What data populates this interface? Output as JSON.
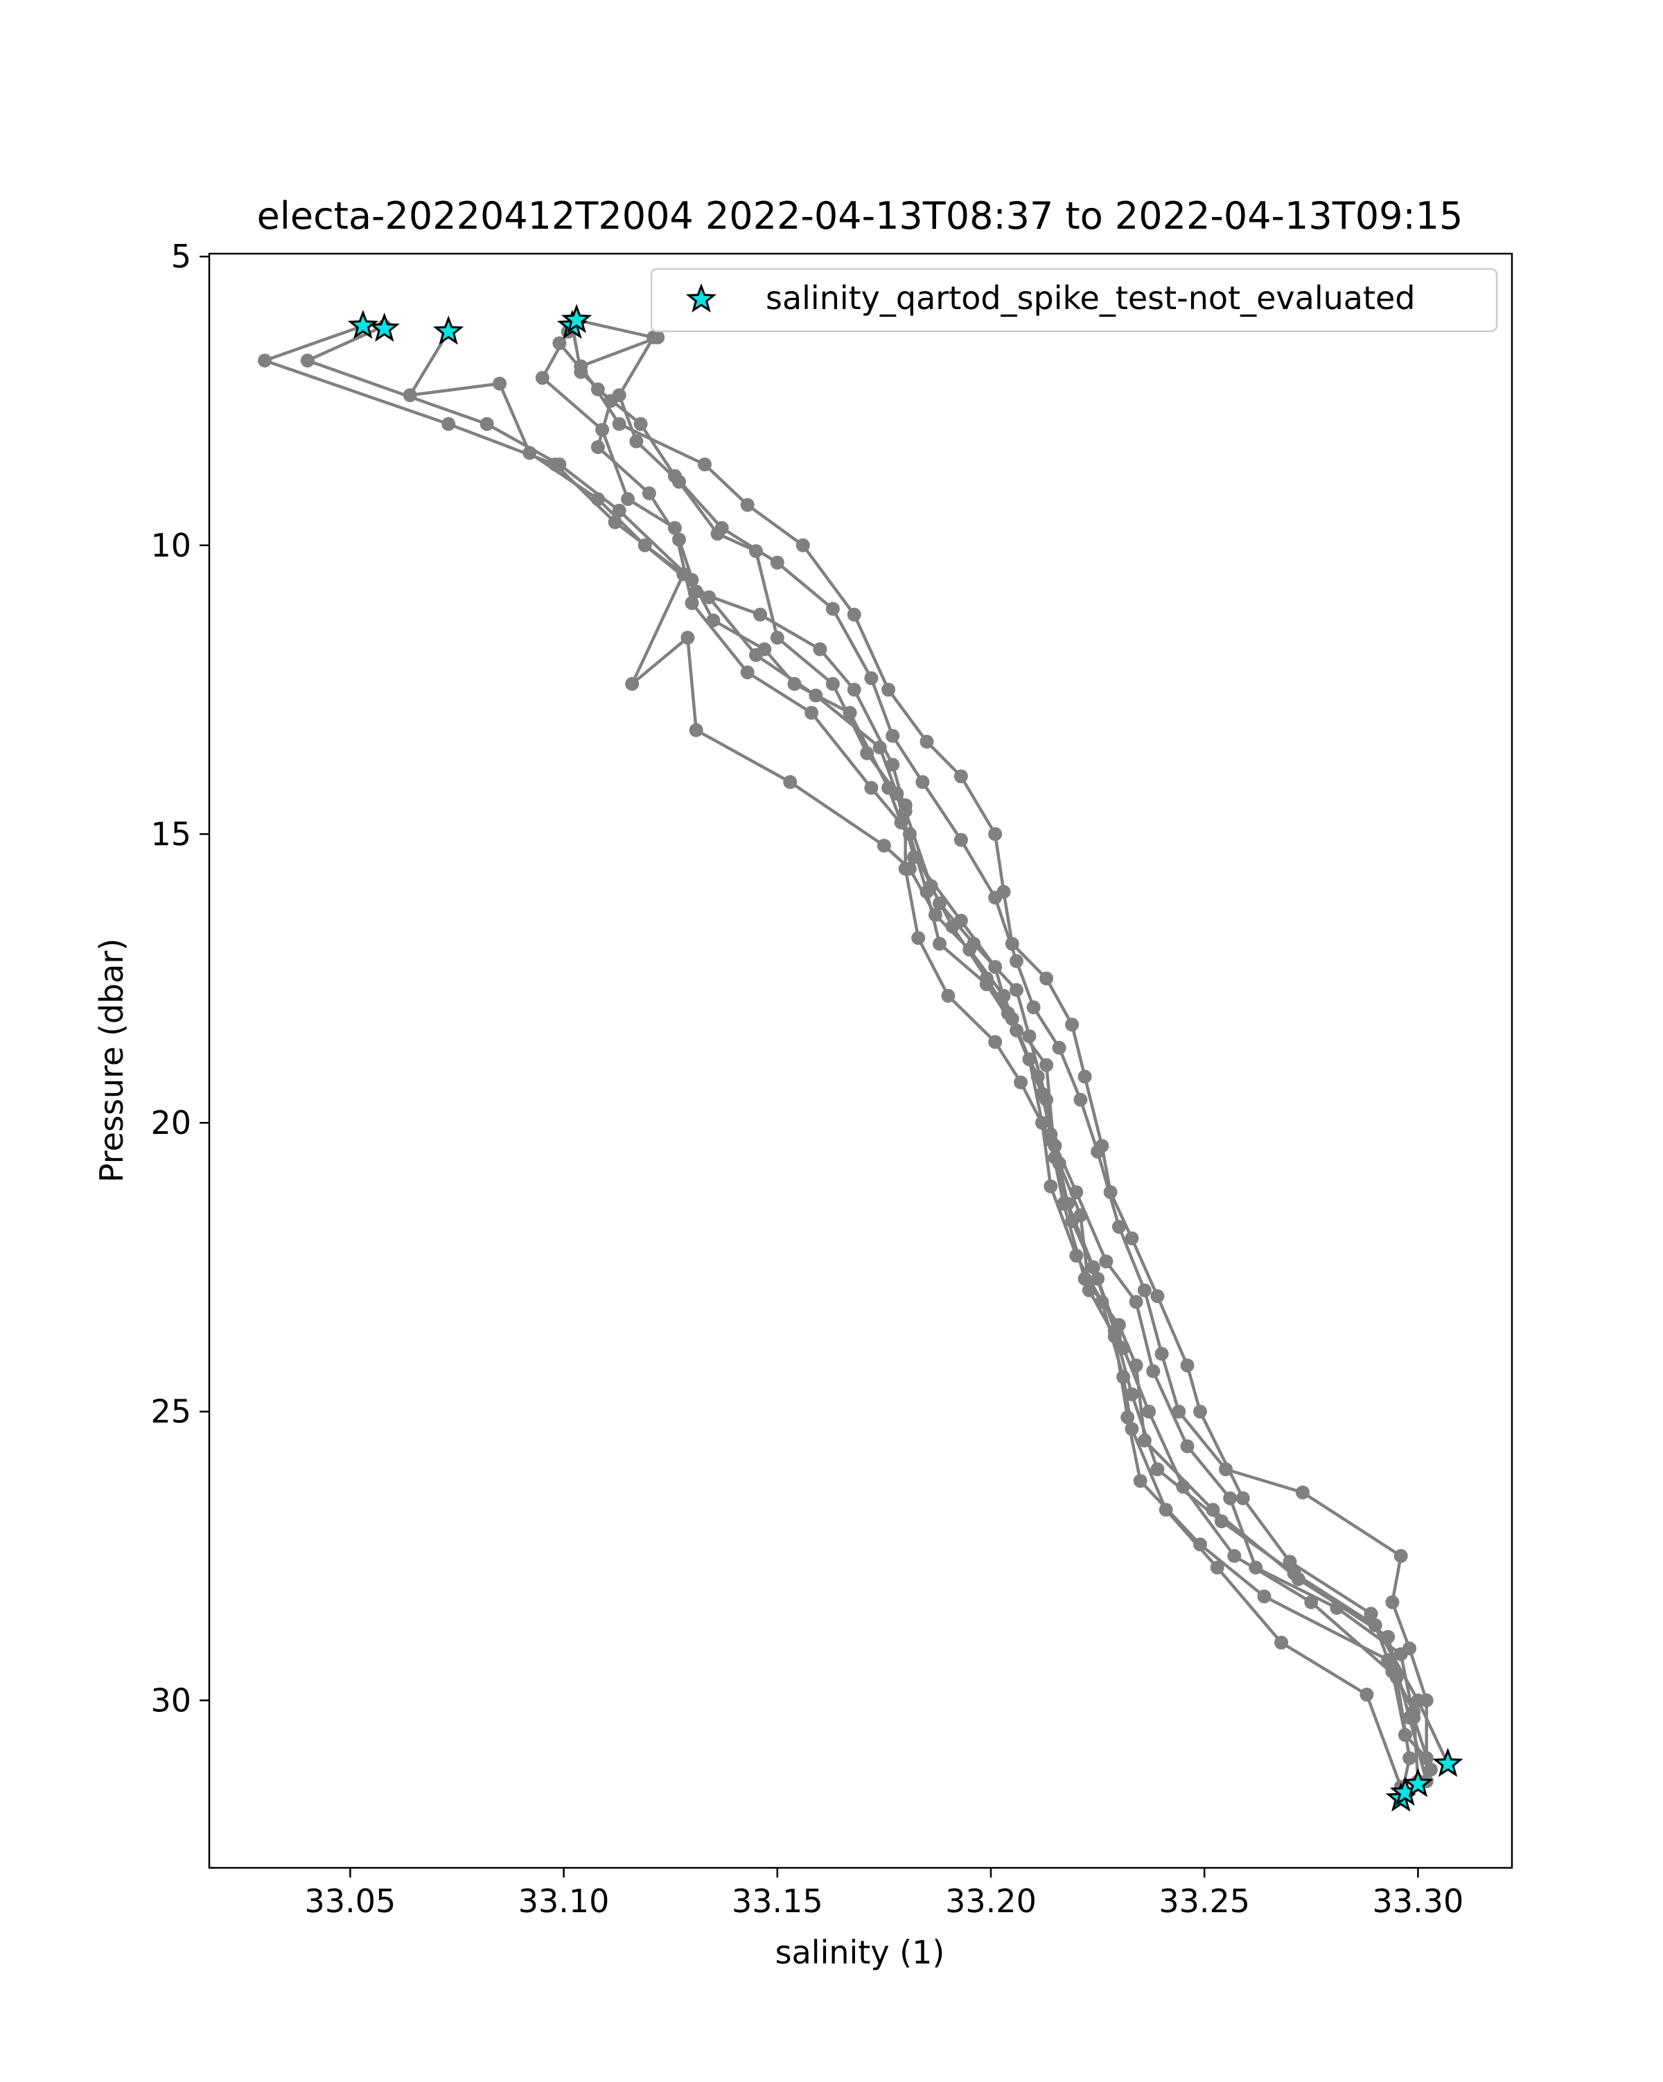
{
  "chart_data": {
    "type": "line",
    "title": "electa-20220412T2004 2022-04-13T08:37 to 2022-04-13T09:15",
    "xlabel": "salinity (1)",
    "ylabel": "Pressure (dbar)",
    "xlim": [
      33.017,
      33.322
    ],
    "ylim": [
      32.9,
      4.95
    ],
    "y_inverted": true,
    "x_ticks": [
      33.05,
      33.1,
      33.15,
      33.2,
      33.25,
      33.3
    ],
    "x_tick_labels": [
      "33.05",
      "33.10",
      "33.15",
      "33.20",
      "33.25",
      "33.30"
    ],
    "y_ticks": [
      5,
      10,
      15,
      20,
      25,
      30
    ],
    "y_tick_labels": [
      "5",
      "10",
      "15",
      "20",
      "25",
      "30"
    ],
    "grid": false,
    "legend": {
      "position": "top-right",
      "entries": [
        {
          "label": "salinity_qartod_spike_test-not_evaluated",
          "marker": "star",
          "color": "#00e5e5",
          "edgecolor": "#000000"
        }
      ]
    },
    "line_color": "#808080",
    "series": [
      {
        "points": [
          [
            33.053,
            6.2
          ],
          [
            33.03,
            6.8
          ],
          [
            33.073,
            7.9
          ],
          [
            33.098,
            8.6
          ],
          [
            33.112,
            9.6
          ],
          [
            33.128,
            10.5
          ],
          [
            33.116,
            12.4
          ],
          [
            33.129,
            11.6
          ],
          [
            33.131,
            13.2
          ],
          [
            33.153,
            14.1
          ],
          [
            33.175,
            15.2
          ],
          [
            33.181,
            15.6
          ],
          [
            33.187,
            16.4
          ],
          [
            33.195,
            17.0
          ],
          [
            33.203,
            17.8
          ],
          [
            33.209,
            18.9
          ],
          [
            33.212,
            20.0
          ],
          [
            33.214,
            21.1
          ],
          [
            33.22,
            22.3
          ],
          [
            33.226,
            23.1
          ],
          [
            33.231,
            24.4
          ],
          [
            33.233,
            25.3
          ],
          [
            33.241,
            26.7
          ],
          [
            33.253,
            27.7
          ],
          [
            33.268,
            29.0
          ],
          [
            33.288,
            29.9
          ],
          [
            33.296,
            31.5
          ],
          [
            33.297,
            31.6
          ]
        ]
      },
      {
        "points": [
          [
            33.058,
            6.2
          ],
          [
            33.04,
            6.8
          ],
          [
            33.082,
            7.9
          ],
          [
            33.099,
            8.6
          ],
          [
            33.113,
            9.4
          ],
          [
            33.13,
            10.6
          ],
          [
            33.135,
            11.3
          ],
          [
            33.147,
            11.8
          ],
          [
            33.154,
            12.4
          ],
          [
            33.167,
            12.9
          ],
          [
            33.176,
            14.2
          ],
          [
            33.179,
            14.8
          ],
          [
            33.188,
            16.2
          ],
          [
            33.196,
            16.9
          ],
          [
            33.206,
            17.7
          ],
          [
            33.209,
            18.5
          ],
          [
            33.213,
            19.6
          ],
          [
            33.216,
            20.7
          ],
          [
            33.221,
            21.6
          ],
          [
            33.223,
            22.9
          ],
          [
            33.229,
            23.7
          ],
          [
            33.232,
            25.1
          ],
          [
            33.235,
            26.2
          ],
          [
            33.249,
            27.3
          ],
          [
            33.264,
            28.2
          ],
          [
            33.293,
            29.3
          ],
          [
            33.299,
            30.2
          ],
          [
            33.3,
            31.4
          ]
        ]
      },
      {
        "points": [
          [
            33.073,
            6.3
          ],
          [
            33.064,
            7.4
          ],
          [
            33.085,
            7.2
          ],
          [
            33.092,
            8.4
          ],
          [
            33.108,
            9.2
          ],
          [
            33.119,
            10.0
          ],
          [
            33.134,
            10.9
          ],
          [
            33.145,
            11.9
          ],
          [
            33.159,
            12.6
          ],
          [
            33.174,
            13.5
          ],
          [
            33.178,
            14.3
          ],
          [
            33.182,
            15.4
          ],
          [
            33.193,
            16.5
          ],
          [
            33.201,
            17.3
          ],
          [
            33.204,
            18.1
          ],
          [
            33.211,
            19.2
          ],
          [
            33.215,
            20.4
          ],
          [
            33.218,
            21.4
          ],
          [
            33.224,
            22.5
          ],
          [
            33.229,
            23.6
          ],
          [
            33.233,
            24.7
          ],
          [
            33.239,
            26.0
          ],
          [
            33.254,
            26.9
          ],
          [
            33.271,
            27.8
          ],
          [
            33.29,
            28.7
          ],
          [
            33.3,
            30.0
          ],
          [
            33.307,
            31.1
          ]
        ]
      },
      {
        "points": [
          [
            33.102,
            6.2
          ],
          [
            33.104,
            7.0
          ],
          [
            33.111,
            7.5
          ],
          [
            33.108,
            8.3
          ],
          [
            33.12,
            9.1
          ],
          [
            33.127,
            9.9
          ],
          [
            33.131,
            10.8
          ],
          [
            33.146,
            11.2
          ],
          [
            33.16,
            11.8
          ],
          [
            33.168,
            12.5
          ],
          [
            33.177,
            13.8
          ],
          [
            33.18,
            14.6
          ],
          [
            33.186,
            15.9
          ],
          [
            33.191,
            16.6
          ],
          [
            33.199,
            17.5
          ],
          [
            33.205,
            18.2
          ],
          [
            33.213,
            19.0
          ],
          [
            33.215,
            20.6
          ],
          [
            33.219,
            21.7
          ],
          [
            33.225,
            22.7
          ],
          [
            33.231,
            23.9
          ],
          [
            33.237,
            25.0
          ],
          [
            33.245,
            26.3
          ],
          [
            33.257,
            27.5
          ],
          [
            33.275,
            28.3
          ],
          [
            33.295,
            29.6
          ],
          [
            33.298,
            31.0
          ],
          [
            33.296,
            31.7
          ]
        ]
      },
      {
        "points": [
          [
            33.103,
            6.1
          ],
          [
            33.121,
            6.4
          ],
          [
            33.113,
            7.4
          ],
          [
            33.117,
            8.2
          ],
          [
            33.127,
            8.9
          ],
          [
            33.136,
            9.8
          ],
          [
            33.145,
            10.1
          ],
          [
            33.15,
            11.6
          ],
          [
            33.163,
            12.4
          ],
          [
            33.171,
            13.6
          ],
          [
            33.18,
            14.5
          ],
          [
            33.18,
            15.6
          ],
          [
            33.183,
            16.8
          ],
          [
            33.19,
            17.8
          ],
          [
            33.201,
            18.6
          ],
          [
            33.207,
            19.3
          ],
          [
            33.214,
            20.3
          ],
          [
            33.217,
            21.4
          ],
          [
            33.222,
            22.7
          ],
          [
            33.23,
            23.5
          ],
          [
            33.234,
            24.2
          ],
          [
            33.236,
            25.5
          ],
          [
            33.252,
            26.7
          ],
          [
            33.272,
            27.9
          ],
          [
            33.293,
            28.9
          ],
          [
            33.298,
            30.3
          ],
          [
            33.302,
            31.4
          ]
        ]
      },
      {
        "points": [
          [
            33.101,
            6.3
          ],
          [
            33.095,
            7.1
          ],
          [
            33.109,
            8.0
          ],
          [
            33.115,
            9.2
          ],
          [
            33.126,
            9.7
          ],
          [
            33.13,
            11.0
          ],
          [
            33.143,
            12.2
          ],
          [
            33.158,
            12.9
          ],
          [
            33.172,
            14.2
          ],
          [
            33.181,
            15.0
          ],
          [
            33.185,
            16.0
          ],
          [
            33.188,
            16.9
          ],
          [
            33.199,
            17.6
          ],
          [
            33.206,
            18.4
          ],
          [
            33.212,
            19.5
          ],
          [
            33.214,
            20.2
          ],
          [
            33.22,
            21.2
          ],
          [
            33.227,
            22.4
          ],
          [
            33.234,
            23.1
          ],
          [
            33.238,
            24.3
          ],
          [
            33.246,
            25.6
          ],
          [
            33.256,
            26.5
          ],
          [
            33.262,
            27.7
          ],
          [
            33.281,
            28.4
          ],
          [
            33.296,
            29.2
          ],
          [
            33.299,
            30.3
          ],
          [
            33.303,
            31.2
          ]
        ]
      },
      {
        "points": [
          [
            33.099,
            6.5
          ],
          [
            33.108,
            7.3
          ],
          [
            33.118,
            7.9
          ],
          [
            33.126,
            8.8
          ],
          [
            33.137,
            9.7
          ],
          [
            33.15,
            10.3
          ],
          [
            33.163,
            11.1
          ],
          [
            33.172,
            12.3
          ],
          [
            33.177,
            13.3
          ],
          [
            33.184,
            14.1
          ],
          [
            33.193,
            15.1
          ],
          [
            33.201,
            16.1
          ],
          [
            33.206,
            17.2
          ],
          [
            33.21,
            18.0
          ],
          [
            33.216,
            18.7
          ],
          [
            33.221,
            19.6
          ],
          [
            33.225,
            20.5
          ],
          [
            33.23,
            21.8
          ],
          [
            33.236,
            22.9
          ],
          [
            33.24,
            24.0
          ],
          [
            33.244,
            25.0
          ],
          [
            33.255,
            26.0
          ],
          [
            33.273,
            26.4
          ],
          [
            33.296,
            27.5
          ],
          [
            33.294,
            28.3
          ],
          [
            33.298,
            29.1
          ],
          [
            33.302,
            30.0
          ],
          [
            33.302,
            31.0
          ]
        ]
      },
      {
        "points": [
          [
            33.122,
            6.4
          ],
          [
            33.104,
            6.9
          ],
          [
            33.113,
            7.9
          ],
          [
            33.133,
            8.6
          ],
          [
            33.143,
            9.3
          ],
          [
            33.156,
            10.0
          ],
          [
            33.168,
            11.2
          ],
          [
            33.176,
            12.5
          ],
          [
            33.185,
            13.4
          ],
          [
            33.193,
            14.0
          ],
          [
            33.201,
            15.0
          ],
          [
            33.203,
            16.0
          ],
          [
            33.205,
            16.9
          ],
          [
            33.213,
            17.5
          ],
          [
            33.219,
            18.3
          ],
          [
            33.222,
            19.2
          ],
          [
            33.226,
            20.4
          ],
          [
            33.228,
            21.2
          ],
          [
            33.233,
            22.0
          ],
          [
            33.239,
            23.0
          ],
          [
            33.246,
            24.2
          ],
          [
            33.249,
            25.0
          ],
          [
            33.259,
            26.5
          ],
          [
            33.27,
            27.6
          ],
          [
            33.289,
            28.5
          ],
          [
            33.294,
            29.5
          ],
          [
            33.297,
            30.6
          ],
          [
            33.302,
            31.0
          ]
        ]
      }
    ],
    "flagged_points": [
      [
        33.053,
        6.2
      ],
      [
        33.058,
        6.25
      ],
      [
        33.073,
        6.3
      ],
      [
        33.102,
        6.2
      ],
      [
        33.103,
        6.1
      ],
      [
        33.296,
        31.7
      ],
      [
        33.297,
        31.6
      ],
      [
        33.3,
        31.45
      ],
      [
        33.307,
        31.1
      ]
    ]
  }
}
